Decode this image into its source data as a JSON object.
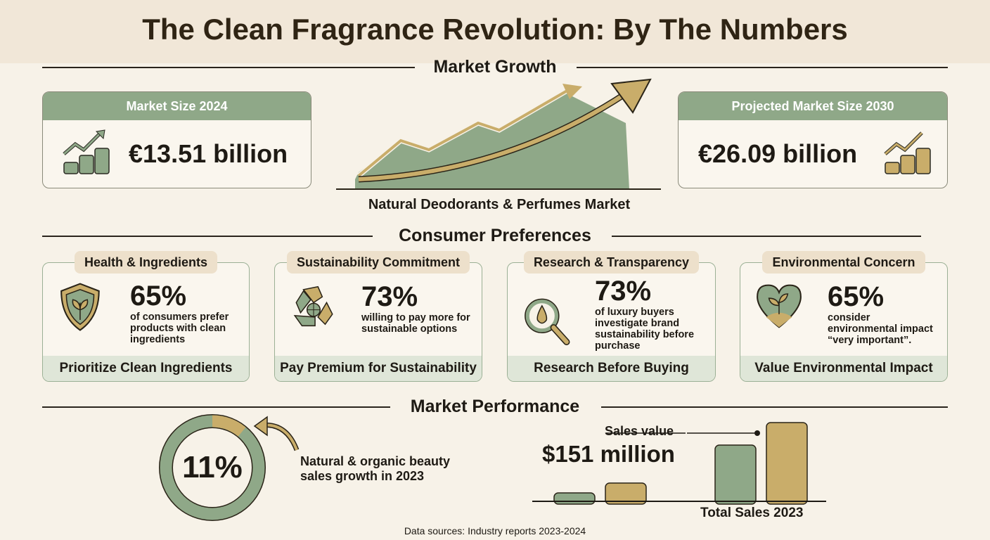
{
  "title": "The Clean Fragrance Revolution: By The Numbers",
  "colors": {
    "sage": "#8fa888",
    "gold": "#c9ad6a",
    "cream": "#f7f2e8",
    "text": "#1e1a14"
  },
  "market_growth": {
    "heading": "Market Growth",
    "left": {
      "label": "Market Size 2024",
      "value": "€13.51 billion",
      "icon": "coins-growth-icon"
    },
    "right": {
      "label": "Projected Market Size 2030",
      "value": "€26.09 billion",
      "icon": "coins-growth-icon"
    },
    "center_label": "Natural Deodorants & Perfumes Market"
  },
  "consumer_preferences": {
    "heading": "Consumer Preferences",
    "cards": [
      {
        "label": "Health & Ingredients",
        "pct": "65%",
        "desc": "of consumers prefer products with clean ingredients",
        "footer": "Prioritize Clean Ingredients",
        "icon": "shield-leaf-icon"
      },
      {
        "label": "Sustainability Commitment",
        "pct": "73%",
        "desc": "willing to pay more for sustainable options",
        "footer": "Pay Premium for Sustainability",
        "icon": "recycle-globe-icon"
      },
      {
        "label": "Research & Transparency",
        "pct": "73%",
        "desc": "of luxury buyers investigate brand sustainability before purchase",
        "footer": "Research Before Buying",
        "icon": "magnifier-drop-icon"
      },
      {
        "label": "Environmental Concern",
        "pct": "65%",
        "desc": "consider environmental impact “very important”.",
        "footer": "Value Environmental Impact",
        "icon": "heart-sprout-icon"
      }
    ]
  },
  "market_performance": {
    "heading": "Market Performance",
    "donut": {
      "value": 11,
      "label": "11%",
      "desc": "Natural & organic beauty sales growth in 2023"
    },
    "sales": {
      "callout": "Sales value",
      "value": "$151 million",
      "axis_label": "Total Sales 2023"
    }
  },
  "footer": "Data sources: Industry reports 2023-2024"
}
